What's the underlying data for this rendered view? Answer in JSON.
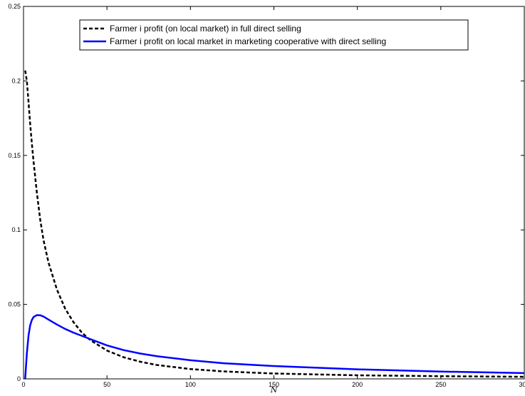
{
  "chart_data": {
    "type": "line",
    "title": "",
    "xlabel": "N",
    "ylabel": "",
    "xlim": [
      0,
      300
    ],
    "ylim": [
      0,
      0.25
    ],
    "xticks": [
      0,
      50,
      100,
      150,
      200,
      250,
      300
    ],
    "xtick_labels": [
      "0",
      "50",
      "100",
      "150",
      "200",
      "250",
      "300"
    ],
    "yticks": [
      0,
      0.05,
      0.1,
      0.15,
      0.2,
      0.25
    ],
    "ytick_labels": [
      "0",
      "0.05",
      "0.1",
      "0.15",
      "0.2",
      "0.25"
    ],
    "grid": false,
    "legend_position": "top",
    "series": [
      {
        "name": "Farmer i profit (on local market) in full direct selling",
        "color": "#000000",
        "style": "dashed",
        "x": [
          1,
          2,
          3,
          4,
          5,
          6,
          8,
          10,
          12,
          15,
          20,
          25,
          30,
          35,
          40,
          50,
          60,
          70,
          80,
          100,
          120,
          150,
          200,
          250,
          300
        ],
        "y": [
          0.207,
          0.2,
          0.186,
          0.171,
          0.158,
          0.146,
          0.125,
          0.107,
          0.093,
          0.078,
          0.06,
          0.047,
          0.038,
          0.031,
          0.026,
          0.019,
          0.0145,
          0.0115,
          0.0093,
          0.0066,
          0.005,
          0.0036,
          0.0024,
          0.0018,
          0.0014
        ]
      },
      {
        "name": "Farmer i profit on local market in marketing cooperative with direct selling",
        "color": "#0000ff",
        "style": "solid",
        "x": [
          1,
          2,
          3,
          4,
          5,
          6,
          8,
          10,
          12,
          15,
          20,
          25,
          30,
          40,
          50,
          60,
          70,
          80,
          100,
          120,
          150,
          200,
          250,
          300
        ],
        "y": [
          0.0,
          0.017,
          0.029,
          0.036,
          0.0395,
          0.0415,
          0.0428,
          0.0427,
          0.0418,
          0.0398,
          0.0365,
          0.0335,
          0.031,
          0.0267,
          0.0225,
          0.0193,
          0.017,
          0.0152,
          0.0125,
          0.0105,
          0.0086,
          0.0064,
          0.0049,
          0.0039
        ]
      }
    ]
  }
}
